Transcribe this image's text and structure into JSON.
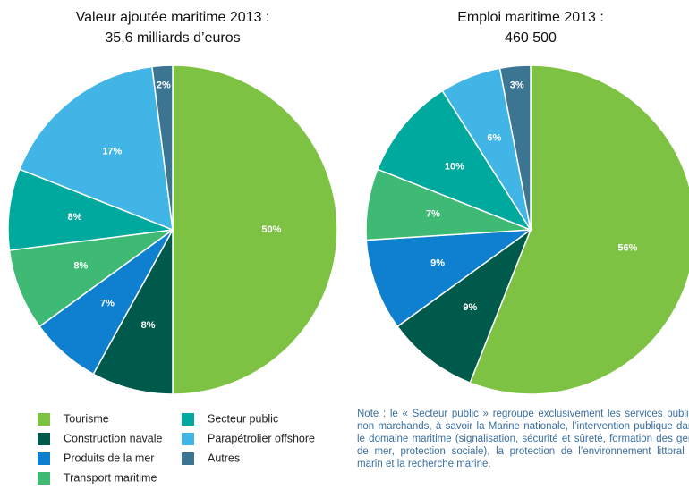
{
  "chart_data": [
    {
      "type": "pie",
      "title": "Valeur ajoutée maritime 2013 :",
      "subtitle": "35,6 milliards d’euros",
      "categories": [
        "Tourisme",
        "Construction navale",
        "Produits de la mer",
        "Transport maritime",
        "Secteur public",
        "Parapétrolier offshore",
        "Autres"
      ],
      "values": [
        50,
        8,
        7,
        8,
        8,
        17,
        2
      ],
      "value_labels": [
        "50%",
        "8%",
        "7%",
        "8%",
        "8%",
        "17%",
        "2%"
      ],
      "colors": [
        "#7dc242",
        "#005a4b",
        "#0f7fcf",
        "#3fba75",
        "#00a99d",
        "#41b6e6",
        "#3b7592"
      ]
    },
    {
      "type": "pie",
      "title": "Emploi maritime 2013 :",
      "subtitle": "460 500",
      "categories": [
        "Tourisme",
        "Construction navale",
        "Produits de la mer",
        "Transport maritime",
        "Secteur public",
        "Parapétrolier offshore",
        "Autres"
      ],
      "values": [
        56,
        9,
        9,
        7,
        10,
        6,
        3
      ],
      "value_labels": [
        "56%",
        "9%",
        "9%",
        "7%",
        "10%",
        "6%",
        "3%"
      ],
      "colors": [
        "#7dc242",
        "#005a4b",
        "#0f7fcf",
        "#3fba75",
        "#00a99d",
        "#41b6e6",
        "#3b7592"
      ]
    }
  ],
  "note": "Note : le « Secteur public » regroupe exclusivement les services publics non marchands, à savoir la Marine nationale, l’intervention publique dans le domaine maritime (signalisation, sécurité et sûreté, formation des gens de mer, protection sociale), la protection de l’environnement littoral et marin et la recherche marine."
}
